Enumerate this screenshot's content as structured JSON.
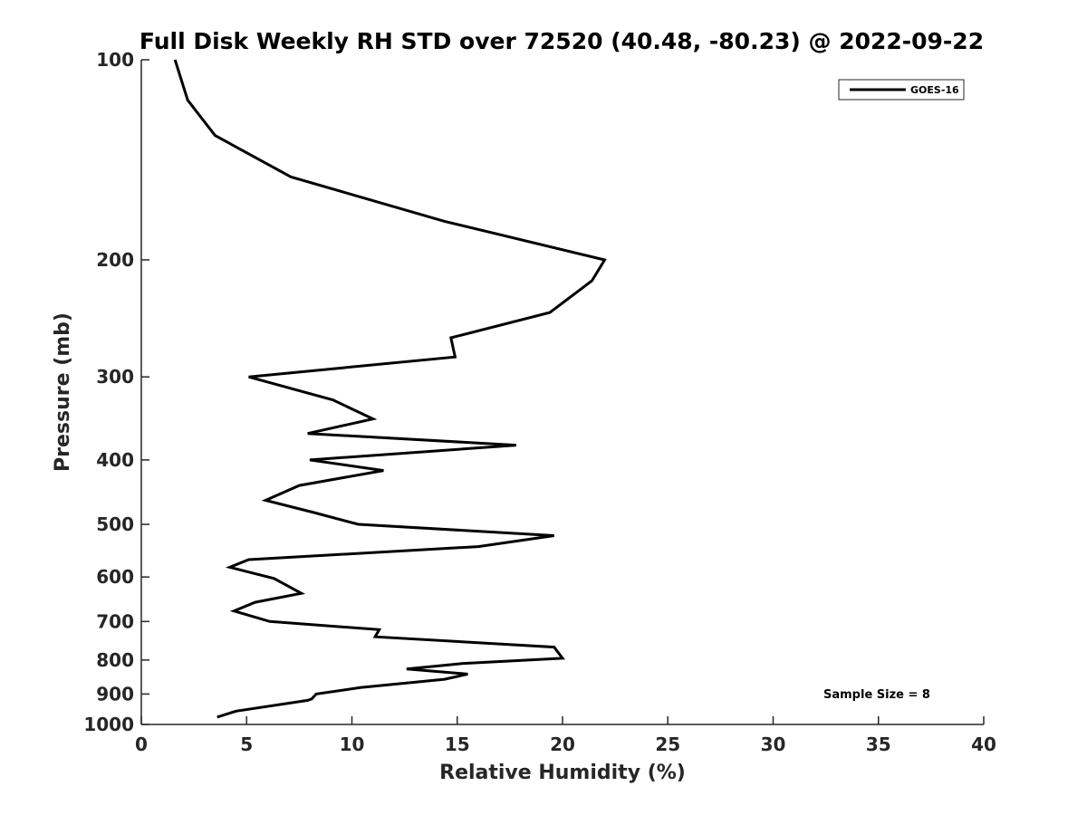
{
  "chart_data": {
    "type": "line",
    "title": "Full Disk Weekly RH STD over 72520 (40.48, -80.23) @ 2022-09-22",
    "xlabel": "Relative Humidity (%)",
    "ylabel": "Pressure (mb)",
    "xlim": [
      0,
      40
    ],
    "ylim": [
      100,
      1000
    ],
    "yscale": "log",
    "yreversed": true,
    "grid": false,
    "x_ticks": [
      "0",
      "5",
      "10",
      "15",
      "20",
      "25",
      "30",
      "35",
      "40"
    ],
    "y_ticks": [
      "100",
      "200",
      "300",
      "400",
      "500",
      "600",
      "700",
      "800",
      "900",
      "1000"
    ],
    "legend": {
      "position": "top-right",
      "entries": [
        "GOES-16"
      ]
    },
    "annotation": "Sample Size = 8",
    "series": [
      {
        "name": "GOES-16",
        "color": "#000000",
        "points": [
          [
            1.6,
            100
          ],
          [
            2.2,
            115
          ],
          [
            3.5,
            130
          ],
          [
            7.1,
            150
          ],
          [
            14.4,
            175
          ],
          [
            22.0,
            200
          ],
          [
            21.4,
            215
          ],
          [
            19.4,
            240
          ],
          [
            14.7,
            262
          ],
          [
            14.9,
            280
          ],
          [
            5.1,
            300
          ],
          [
            9.1,
            325
          ],
          [
            11.0,
            347
          ],
          [
            7.9,
            365
          ],
          [
            17.8,
            380
          ],
          [
            8.0,
            400
          ],
          [
            11.5,
            415
          ],
          [
            7.5,
            437
          ],
          [
            5.9,
            460
          ],
          [
            8.2,
            480
          ],
          [
            10.3,
            500
          ],
          [
            19.6,
            520
          ],
          [
            16.0,
            540
          ],
          [
            5.1,
            565
          ],
          [
            4.2,
            580
          ],
          [
            6.3,
            603
          ],
          [
            7.6,
            635
          ],
          [
            5.4,
            655
          ],
          [
            4.4,
            675
          ],
          [
            6.1,
            700
          ],
          [
            11.3,
            720
          ],
          [
            11.1,
            738
          ],
          [
            19.6,
            765
          ],
          [
            20.0,
            795
          ],
          [
            15.2,
            810
          ],
          [
            12.6,
            825
          ],
          [
            15.5,
            840
          ],
          [
            14.4,
            855
          ],
          [
            10.4,
            880
          ],
          [
            8.3,
            900
          ],
          [
            8.1,
            915
          ],
          [
            7.9,
            920
          ],
          [
            4.5,
            955
          ],
          [
            3.6,
            975
          ]
        ]
      }
    ]
  }
}
